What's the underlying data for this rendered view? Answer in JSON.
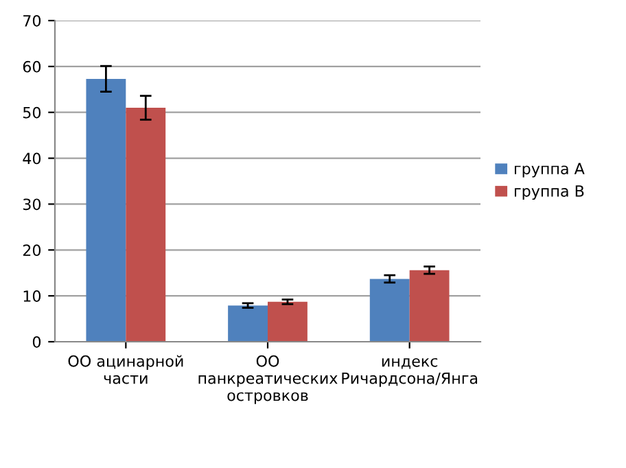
{
  "chart_data": {
    "type": "bar",
    "categories": [
      "ОО ацинарной\nчасти",
      "ОО\nпанкреатических\nостровков",
      "индекс\nРичардсона/Янга"
    ],
    "series": [
      {
        "name": "группа А",
        "color": "#4f81bd",
        "values": [
          57.3,
          7.9,
          13.7
        ],
        "errors": [
          2.8,
          0.5,
          0.8
        ]
      },
      {
        "name": "группа В",
        "color": "#c0504d",
        "values": [
          51.0,
          8.7,
          15.6
        ],
        "errors": [
          2.6,
          0.5,
          0.8
        ]
      }
    ],
    "ylim": [
      0,
      70
    ],
    "yticks": [
      0,
      10,
      20,
      30,
      40,
      50,
      60,
      70
    ],
    "grid": "y",
    "legend": "right"
  }
}
